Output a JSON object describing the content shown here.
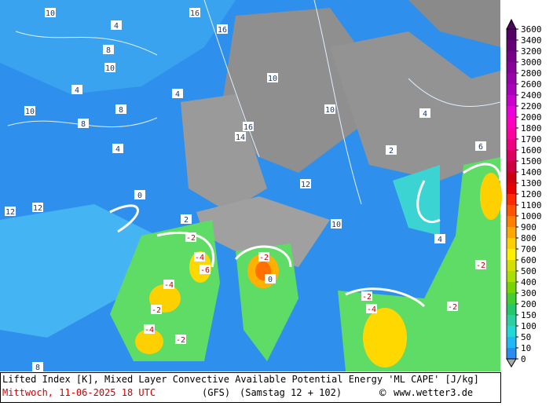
{
  "footer": {
    "line1": "Lifted Index [K], Mixed Layer Convective Available Potential Energy 'ML CAPE' [J/kg]",
    "date": "Mittwoch, 11-06-2025  18 UTC",
    "model": "(GFS)",
    "run": "(Samstag 12 + 102)",
    "copyright": "©",
    "site": "www.wetter3.de"
  },
  "legend": {
    "levels": [
      "0",
      "10",
      "50",
      "100",
      "150",
      "200",
      "300",
      "400",
      "500",
      "600",
      "700",
      "800",
      "900",
      "1000",
      "1100",
      "1200",
      "1300",
      "1400",
      "1500",
      "1600",
      "1700",
      "1800",
      "2000",
      "2200",
      "2400",
      "2600",
      "2800",
      "3000",
      "3200",
      "3400",
      "3600"
    ],
    "colors": [
      "#2b8cf0",
      "#22b8f5",
      "#22d8d8",
      "#2ccfa0",
      "#22c86a",
      "#44cc33",
      "#77d400",
      "#a8e000",
      "#d4e000",
      "#fff000",
      "#ffd000",
      "#ffa800",
      "#ff8000",
      "#ff5500",
      "#ff2a00",
      "#e80000",
      "#cc0010",
      "#cc0040",
      "#dd0060",
      "#ee0080",
      "#ff00a0",
      "#ff00c0",
      "#ee00dd",
      "#cc00cc",
      "#aa00bb",
      "#9900aa",
      "#880099",
      "#770088",
      "#660077",
      "#550066"
    ]
  },
  "map_labels": [
    "10",
    "16",
    "16",
    "4",
    "8",
    "10",
    "4",
    "10",
    "8",
    "8",
    "4",
    "4",
    "14",
    "16",
    "10",
    "10",
    "4",
    "2",
    "6",
    "12",
    "12",
    "0",
    "2",
    "-2",
    "-4",
    "-6",
    "-4",
    "-2",
    "-4",
    "-2",
    "0",
    "-2",
    "-4",
    "-2",
    "-2",
    "12",
    "10",
    "4",
    "8",
    "-2"
  ]
}
